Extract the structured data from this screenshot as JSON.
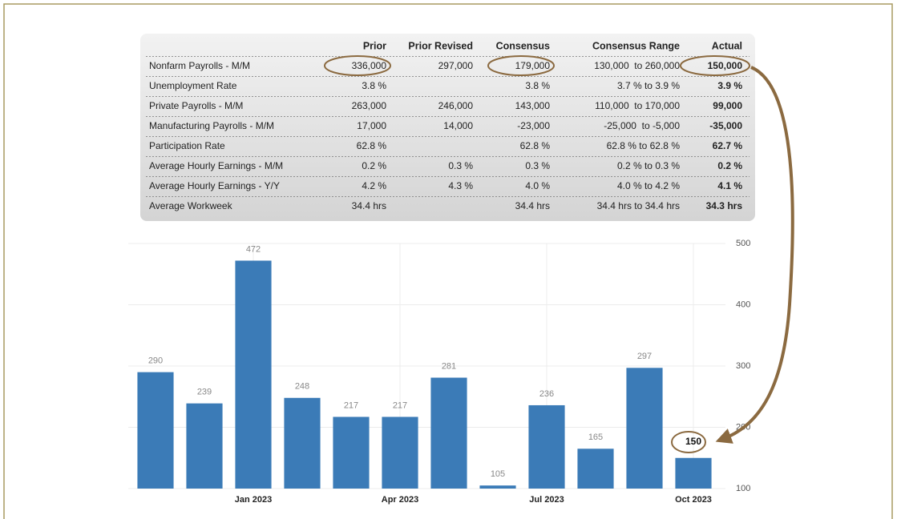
{
  "table": {
    "header": [
      null,
      "Prior",
      "Prior Revised",
      "Consensus",
      "Consensus Range",
      "Actual"
    ],
    "rows": [
      [
        "Nonfarm Payrolls - M/M",
        "336,000",
        "297,000",
        "179,000",
        "130,000  to 260,000",
        "150,000"
      ],
      [
        "Unemployment Rate",
        "3.8 %",
        null,
        "3.8 %",
        "3.7 % to 3.9 %",
        "3.9 %"
      ],
      [
        "Private Payrolls - M/M",
        "263,000",
        "246,000",
        "143,000",
        "110,000  to 170,000",
        "99,000"
      ],
      [
        "Manufacturing Payrolls - M/M",
        "17,000",
        "14,000",
        "-23,000",
        "-25,000  to -5,000",
        "-35,000"
      ],
      [
        "Participation Rate",
        "62.8 %",
        null,
        "62.8 %",
        "62.8 % to 62.8 %",
        "62.7 %"
      ],
      [
        "Average Hourly Earnings - M/M",
        "0.2 %",
        "0.3 %",
        "0.3 %",
        "0.2 % to 0.3 %",
        "0.2 %"
      ],
      [
        "Average Hourly Earnings - Y/Y",
        "4.2 %",
        "4.3 %",
        "4.0 %",
        "4.0 % to 4.2 %",
        "4.1 %"
      ],
      [
        "Average Workweek",
        "34.4 hrs",
        null,
        "34.4 hrs",
        "34.4 hrs to 34.4 hrs",
        "34.3 hrs"
      ]
    ]
  },
  "chart_data": {
    "type": "bar",
    "categories": [
      null,
      null,
      "Jan 2023",
      null,
      null,
      "Apr 2023",
      null,
      null,
      "Jul 2023",
      null,
      null,
      "Oct 2023"
    ],
    "values": [
      290,
      239,
      472,
      248,
      217,
      217,
      281,
      105,
      236,
      165,
      297,
      150
    ],
    "color": "#3b7bb7",
    "ylim": [
      100,
      500
    ],
    "yticks": [
      100,
      200,
      300,
      400,
      500
    ],
    "grid": true
  }
}
